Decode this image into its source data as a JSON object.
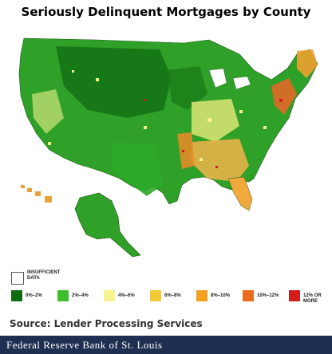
{
  "title": "Seriously Delinquent Mortgages by County",
  "insufficient_label": "INSUFFICIENT DATA",
  "legend": [
    {
      "label": "0%–2%",
      "color": "#0f6b12"
    },
    {
      "label": "2%–4%",
      "color": "#3cbf2a"
    },
    {
      "label": "4%–6%",
      "color": "#f6f48e"
    },
    {
      "label": "6%–8%",
      "color": "#f2cb37"
    },
    {
      "label": "8%–10%",
      "color": "#f3a021"
    },
    {
      "label": "10%–12%",
      "color": "#ea6a1e"
    },
    {
      "label": "12% OR MORE",
      "color": "#d21d1d"
    }
  ],
  "source": "Source: Lender Processing Services",
  "footer": "Federal Reserve Bank of St. Louis"
}
